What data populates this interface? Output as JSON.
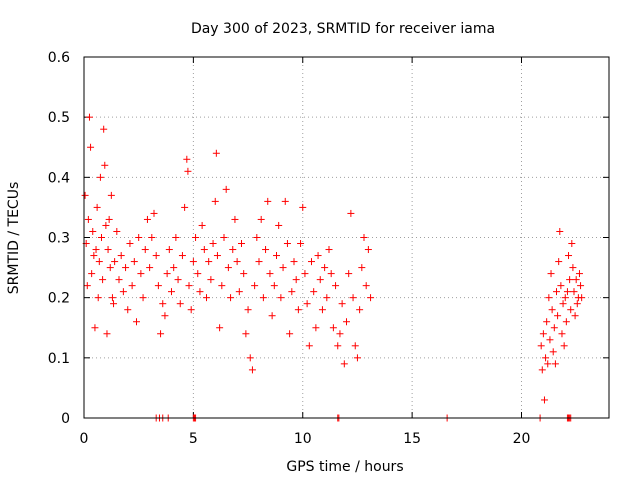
{
  "chart_data": {
    "type": "scatter",
    "title": "Day 300 of 2023, SRMTID for receiver iama",
    "xlabel": "GPS time / hours",
    "ylabel": "SRMTID / TECUs",
    "xlim": [
      0,
      24
    ],
    "ylim": [
      0,
      0.6
    ],
    "xticks": [
      0,
      5,
      10,
      15,
      20
    ],
    "xtick_labels": [
      "0",
      "5",
      "10",
      "15",
      "20"
    ],
    "yticks": [
      0,
      0.1,
      0.2,
      0.3,
      0.4,
      0.5,
      0.6
    ],
    "ytick_labels": [
      "0",
      "0.1",
      "0.2",
      "0.3",
      "0.4",
      "0.5",
      "0.6"
    ],
    "grid": true,
    "marker": "+",
    "series": [
      {
        "name": "SRMTID",
        "color": "#ff0000",
        "points": [
          [
            0.05,
            0.37
          ],
          [
            0.1,
            0.29
          ],
          [
            0.15,
            0.22
          ],
          [
            0.2,
            0.33
          ],
          [
            0.25,
            0.5
          ],
          [
            0.3,
            0.45
          ],
          [
            0.35,
            0.24
          ],
          [
            0.4,
            0.31
          ],
          [
            0.45,
            0.27
          ],
          [
            0.5,
            0.15
          ],
          [
            0.55,
            0.28
          ],
          [
            0.6,
            0.35
          ],
          [
            0.65,
            0.2
          ],
          [
            0.7,
            0.26
          ],
          [
            0.75,
            0.4
          ],
          [
            0.8,
            0.3
          ],
          [
            0.85,
            0.23
          ],
          [
            0.9,
            0.48
          ],
          [
            0.95,
            0.42
          ],
          [
            1.0,
            0.32
          ],
          [
            1.05,
            0.14
          ],
          [
            1.1,
            0.28
          ],
          [
            1.15,
            0.33
          ],
          [
            1.2,
            0.25
          ],
          [
            1.25,
            0.37
          ],
          [
            1.3,
            0.2
          ],
          [
            1.35,
            0.19
          ],
          [
            1.4,
            0.26
          ],
          [
            1.5,
            0.31
          ],
          [
            1.6,
            0.23
          ],
          [
            1.7,
            0.27
          ],
          [
            1.8,
            0.21
          ],
          [
            1.9,
            0.25
          ],
          [
            2.0,
            0.18
          ],
          [
            2.1,
            0.29
          ],
          [
            2.2,
            0.22
          ],
          [
            2.3,
            0.26
          ],
          [
            2.4,
            0.16
          ],
          [
            2.5,
            0.3
          ],
          [
            2.6,
            0.24
          ],
          [
            2.7,
            0.2
          ],
          [
            2.8,
            0.28
          ],
          [
            2.9,
            0.33
          ],
          [
            3.0,
            0.25
          ],
          [
            3.1,
            0.3
          ],
          [
            3.2,
            0.34
          ],
          [
            3.3,
            0.27
          ],
          [
            3.4,
            0.22
          ],
          [
            3.5,
            0.14
          ],
          [
            3.6,
            0.19
          ],
          [
            3.7,
            0.17
          ],
          [
            3.8,
            0.24
          ],
          [
            3.9,
            0.28
          ],
          [
            4.0,
            0.21
          ],
          [
            4.1,
            0.25
          ],
          [
            4.2,
            0.3
          ],
          [
            4.3,
            0.23
          ],
          [
            4.4,
            0.19
          ],
          [
            4.5,
            0.27
          ],
          [
            4.6,
            0.35
          ],
          [
            4.7,
            0.43
          ],
          [
            4.75,
            0.41
          ],
          [
            4.8,
            0.22
          ],
          [
            4.9,
            0.18
          ],
          [
            5.0,
            0.26
          ],
          [
            5.1,
            0.3
          ],
          [
            5.2,
            0.24
          ],
          [
            5.3,
            0.21
          ],
          [
            5.4,
            0.32
          ],
          [
            5.5,
            0.28
          ],
          [
            5.6,
            0.2
          ],
          [
            5.7,
            0.26
          ],
          [
            5.8,
            0.23
          ],
          [
            5.9,
            0.29
          ],
          [
            6.0,
            0.36
          ],
          [
            6.05,
            0.44
          ],
          [
            6.1,
            0.27
          ],
          [
            6.2,
            0.15
          ],
          [
            6.3,
            0.22
          ],
          [
            6.4,
            0.3
          ],
          [
            6.5,
            0.38
          ],
          [
            6.6,
            0.25
          ],
          [
            6.7,
            0.2
          ],
          [
            6.8,
            0.28
          ],
          [
            6.9,
            0.33
          ],
          [
            7.0,
            0.26
          ],
          [
            7.1,
            0.21
          ],
          [
            7.2,
            0.29
          ],
          [
            7.3,
            0.24
          ],
          [
            7.4,
            0.14
          ],
          [
            7.5,
            0.18
          ],
          [
            7.6,
            0.1
          ],
          [
            7.7,
            0.08
          ],
          [
            7.8,
            0.22
          ],
          [
            7.9,
            0.3
          ],
          [
            8.0,
            0.26
          ],
          [
            8.1,
            0.33
          ],
          [
            8.2,
            0.2
          ],
          [
            8.3,
            0.28
          ],
          [
            8.4,
            0.36
          ],
          [
            8.5,
            0.24
          ],
          [
            8.6,
            0.17
          ],
          [
            8.7,
            0.22
          ],
          [
            8.8,
            0.27
          ],
          [
            8.9,
            0.32
          ],
          [
            9.0,
            0.2
          ],
          [
            9.1,
            0.25
          ],
          [
            9.2,
            0.36
          ],
          [
            9.3,
            0.29
          ],
          [
            9.4,
            0.14
          ],
          [
            9.5,
            0.21
          ],
          [
            9.6,
            0.26
          ],
          [
            9.7,
            0.23
          ],
          [
            9.8,
            0.18
          ],
          [
            9.9,
            0.29
          ],
          [
            10.0,
            0.35
          ],
          [
            10.1,
            0.24
          ],
          [
            10.2,
            0.19
          ],
          [
            10.3,
            0.12
          ],
          [
            10.4,
            0.26
          ],
          [
            10.5,
            0.21
          ],
          [
            10.6,
            0.15
          ],
          [
            10.7,
            0.27
          ],
          [
            10.8,
            0.23
          ],
          [
            10.9,
            0.18
          ],
          [
            11.0,
            0.25
          ],
          [
            11.1,
            0.2
          ],
          [
            11.2,
            0.28
          ],
          [
            11.3,
            0.24
          ],
          [
            11.4,
            0.15
          ],
          [
            11.5,
            0.22
          ],
          [
            11.6,
            0.12
          ],
          [
            11.7,
            0.14
          ],
          [
            11.8,
            0.19
          ],
          [
            11.9,
            0.09
          ],
          [
            12.0,
            0.16
          ],
          [
            12.1,
            0.24
          ],
          [
            12.2,
            0.34
          ],
          [
            12.3,
            0.2
          ],
          [
            12.4,
            0.12
          ],
          [
            12.5,
            0.1
          ],
          [
            12.6,
            0.18
          ],
          [
            12.7,
            0.25
          ],
          [
            12.8,
            0.3
          ],
          [
            12.9,
            0.22
          ],
          [
            13.0,
            0.28
          ],
          [
            13.1,
            0.2
          ],
          [
            3.3,
            0.0
          ],
          [
            3.45,
            0.0
          ],
          [
            3.6,
            0.0
          ],
          [
            3.85,
            0.0
          ],
          [
            5.0,
            0.0
          ],
          [
            5.05,
            0.0
          ],
          [
            5.1,
            0.0
          ],
          [
            11.6,
            0.0
          ],
          [
            11.65,
            0.0
          ],
          [
            16.6,
            0.0
          ],
          [
            20.9,
            0.12
          ],
          [
            20.95,
            0.08
          ],
          [
            21.0,
            0.14
          ],
          [
            21.05,
            0.03
          ],
          [
            21.1,
            0.1
          ],
          [
            21.15,
            0.16
          ],
          [
            21.2,
            0.09
          ],
          [
            21.25,
            0.2
          ],
          [
            21.3,
            0.13
          ],
          [
            21.35,
            0.24
          ],
          [
            21.4,
            0.18
          ],
          [
            21.45,
            0.11
          ],
          [
            21.5,
            0.15
          ],
          [
            21.55,
            0.09
          ],
          [
            21.6,
            0.21
          ],
          [
            21.65,
            0.17
          ],
          [
            21.7,
            0.26
          ],
          [
            21.75,
            0.31
          ],
          [
            21.8,
            0.22
          ],
          [
            21.85,
            0.14
          ],
          [
            21.9,
            0.19
          ],
          [
            21.95,
            0.12
          ],
          [
            22.0,
            0.2
          ],
          [
            22.05,
            0.16
          ],
          [
            22.1,
            0.21
          ],
          [
            22.15,
            0.27
          ],
          [
            22.2,
            0.23
          ],
          [
            22.25,
            0.18
          ],
          [
            22.3,
            0.29
          ],
          [
            22.35,
            0.25
          ],
          [
            22.4,
            0.21
          ],
          [
            22.45,
            0.17
          ],
          [
            22.5,
            0.23
          ],
          [
            22.55,
            0.19
          ],
          [
            22.6,
            0.2
          ],
          [
            22.65,
            0.24
          ],
          [
            22.7,
            0.22
          ],
          [
            22.75,
            0.2
          ],
          [
            20.85,
            0.0
          ],
          [
            22.1,
            0.0
          ],
          [
            22.15,
            0.0
          ],
          [
            22.2,
            0.0
          ],
          [
            22.25,
            0.0
          ]
        ]
      }
    ]
  }
}
